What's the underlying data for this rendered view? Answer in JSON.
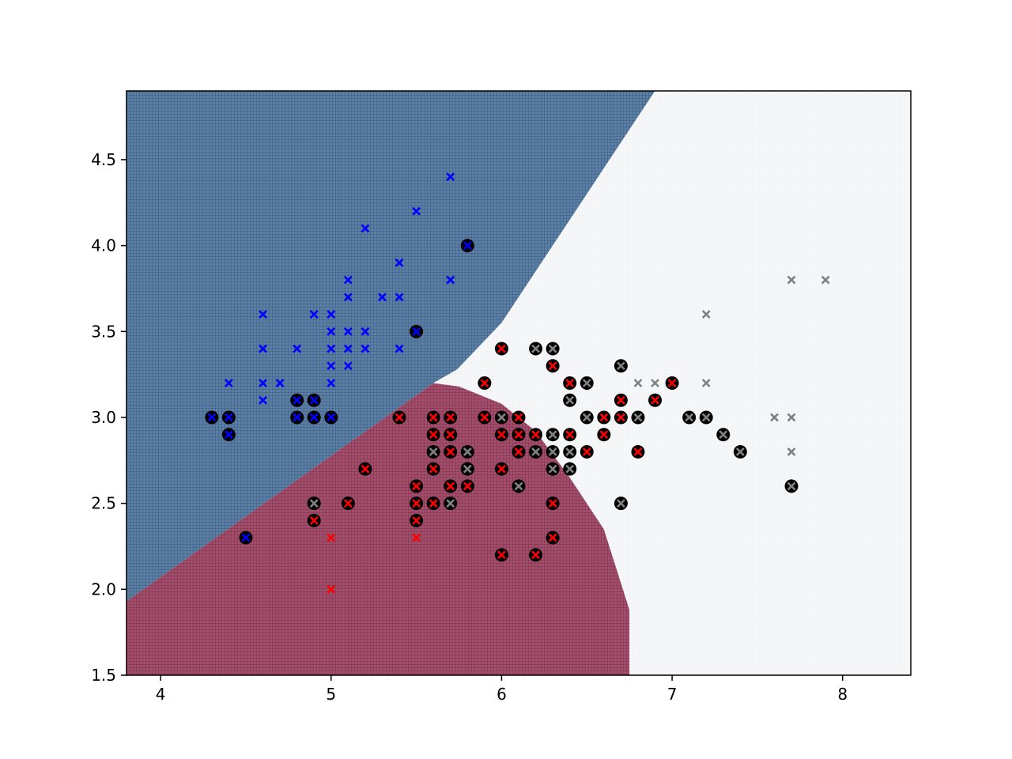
{
  "chart_data": {
    "type": "scatter",
    "title": "",
    "xlabel": "",
    "ylabel": "",
    "xlim": [
      3.8,
      8.4
    ],
    "ylim": [
      1.5,
      4.9
    ],
    "grid": false,
    "x_ticks": [
      4,
      5,
      6,
      7,
      8
    ],
    "x_tick_labels": [
      "4",
      "5",
      "6",
      "7",
      "8"
    ],
    "y_ticks": [
      1.5,
      2.0,
      2.5,
      3.0,
      3.5,
      4.0,
      4.5
    ],
    "y_tick_labels": [
      "1.5",
      "2.0",
      "2.5",
      "3.0",
      "3.5",
      "4.0",
      "4.5"
    ],
    "decision_regions": [
      {
        "color": "#5c7fa6",
        "grid_color": "#2f4f6e",
        "polygon": [
          [
            3.8,
            1.93
          ],
          [
            5.6,
            3.2
          ],
          [
            5.74,
            3.28
          ],
          [
            6.0,
            3.55
          ],
          [
            6.4,
            4.15
          ],
          [
            6.9,
            4.9
          ],
          [
            3.8,
            4.9
          ]
        ]
      },
      {
        "color": "#a44e6c",
        "grid_color": "#6b2a41",
        "polygon": [
          [
            3.8,
            1.5
          ],
          [
            6.75,
            1.5
          ],
          [
            6.75,
            1.88
          ],
          [
            6.6,
            2.35
          ],
          [
            6.4,
            2.65
          ],
          [
            6.2,
            2.92
          ],
          [
            6.0,
            3.08
          ],
          [
            5.75,
            3.18
          ],
          [
            5.6,
            3.2
          ],
          [
            3.8,
            1.93
          ]
        ]
      },
      {
        "color": "#f6f7f8",
        "grid_color": "#eceef0",
        "polygon": [
          [
            6.75,
            1.5
          ],
          [
            8.4,
            1.5
          ],
          [
            8.4,
            4.9
          ],
          [
            6.9,
            4.9
          ],
          [
            6.4,
            4.15
          ],
          [
            6.0,
            3.55
          ],
          [
            5.74,
            3.28
          ],
          [
            5.6,
            3.2
          ],
          [
            5.75,
            3.18
          ],
          [
            6.0,
            3.08
          ],
          [
            6.2,
            2.92
          ],
          [
            6.4,
            2.65
          ],
          [
            6.6,
            2.35
          ],
          [
            6.75,
            1.88
          ]
        ]
      }
    ],
    "series": [
      {
        "color": "#0000ff",
        "marker": "x",
        "points": [
          [
            5.7,
            4.4
          ],
          [
            5.5,
            4.2
          ],
          [
            5.2,
            4.1
          ],
          [
            5.4,
            3.9
          ],
          [
            5.1,
            3.8
          ],
          [
            5.7,
            3.8
          ],
          [
            5.1,
            3.7
          ],
          [
            5.3,
            3.7
          ],
          [
            5.4,
            3.7
          ],
          [
            4.6,
            3.6
          ],
          [
            4.9,
            3.6
          ],
          [
            5.0,
            3.6
          ],
          [
            4.7,
            3.2
          ],
          [
            4.6,
            3.4
          ],
          [
            4.8,
            3.4
          ],
          [
            5.0,
            3.4
          ],
          [
            5.1,
            3.4
          ],
          [
            5.2,
            3.4
          ],
          [
            5.4,
            3.4
          ],
          [
            5.0,
            3.5
          ],
          [
            5.1,
            3.5
          ],
          [
            5.2,
            3.5
          ],
          [
            5.0,
            3.3
          ],
          [
            5.1,
            3.3
          ],
          [
            4.4,
            3.2
          ],
          [
            4.6,
            3.2
          ],
          [
            4.7,
            3.2
          ],
          [
            5.0,
            3.2
          ],
          [
            4.6,
            3.1
          ]
        ],
        "circled_points": [
          [
            5.8,
            4.0
          ],
          [
            5.5,
            3.5
          ],
          [
            4.8,
            3.1
          ],
          [
            4.9,
            3.1
          ],
          [
            4.3,
            3.0
          ],
          [
            4.4,
            3.0
          ],
          [
            4.8,
            3.0
          ],
          [
            4.9,
            3.0
          ],
          [
            5.0,
            3.0
          ],
          [
            4.4,
            2.9
          ],
          [
            4.5,
            2.3
          ]
        ]
      },
      {
        "color": "#ff0000",
        "marker": "x",
        "points": [
          [
            5.0,
            2.3
          ],
          [
            5.5,
            2.3
          ],
          [
            5.0,
            2.0
          ]
        ],
        "circled_points": [
          [
            6.0,
            3.4
          ],
          [
            6.3,
            3.3
          ],
          [
            5.9,
            3.2
          ],
          [
            6.4,
            3.2
          ],
          [
            7.0,
            3.2
          ],
          [
            6.7,
            3.1
          ],
          [
            6.9,
            3.1
          ],
          [
            5.4,
            3.0
          ],
          [
            5.6,
            3.0
          ],
          [
            5.7,
            3.0
          ],
          [
            5.9,
            3.0
          ],
          [
            6.1,
            3.0
          ],
          [
            6.6,
            3.0
          ],
          [
            6.7,
            3.0
          ],
          [
            5.6,
            2.9
          ],
          [
            5.7,
            2.9
          ],
          [
            6.0,
            2.9
          ],
          [
            6.1,
            2.9
          ],
          [
            6.2,
            2.9
          ],
          [
            6.4,
            2.9
          ],
          [
            6.6,
            2.9
          ],
          [
            5.7,
            2.8
          ],
          [
            6.1,
            2.8
          ],
          [
            6.5,
            2.8
          ],
          [
            6.8,
            2.8
          ],
          [
            5.6,
            2.7
          ],
          [
            5.8,
            2.7
          ],
          [
            6.0,
            2.7
          ],
          [
            5.2,
            2.7
          ],
          [
            5.5,
            2.6
          ],
          [
            5.7,
            2.6
          ],
          [
            5.8,
            2.6
          ],
          [
            5.1,
            2.5
          ],
          [
            5.5,
            2.5
          ],
          [
            5.6,
            2.5
          ],
          [
            6.3,
            2.5
          ],
          [
            4.9,
            2.4
          ],
          [
            5.5,
            2.4
          ],
          [
            6.3,
            2.3
          ],
          [
            6.0,
            2.2
          ],
          [
            6.2,
            2.2
          ]
        ]
      },
      {
        "color": "#808080",
        "marker": "x",
        "points": [
          [
            7.7,
            3.8
          ],
          [
            7.9,
            3.8
          ],
          [
            7.2,
            3.6
          ],
          [
            6.8,
            3.2
          ],
          [
            6.9,
            3.2
          ],
          [
            7.2,
            3.2
          ],
          [
            7.6,
            3.0
          ],
          [
            7.7,
            3.0
          ],
          [
            7.7,
            2.8
          ]
        ],
        "circled_points": [
          [
            6.2,
            3.4
          ],
          [
            6.3,
            3.4
          ],
          [
            6.7,
            3.3
          ],
          [
            6.5,
            3.2
          ],
          [
            6.4,
            3.1
          ],
          [
            6.0,
            3.0
          ],
          [
            6.5,
            3.0
          ],
          [
            6.8,
            3.0
          ],
          [
            7.1,
            3.0
          ],
          [
            7.2,
            3.0
          ],
          [
            6.3,
            2.9
          ],
          [
            7.3,
            2.9
          ],
          [
            5.6,
            2.8
          ],
          [
            5.8,
            2.8
          ],
          [
            6.2,
            2.8
          ],
          [
            6.3,
            2.8
          ],
          [
            6.4,
            2.8
          ],
          [
            7.4,
            2.8
          ],
          [
            5.8,
            2.7
          ],
          [
            6.3,
            2.7
          ],
          [
            6.4,
            2.7
          ],
          [
            6.1,
            2.6
          ],
          [
            7.7,
            2.6
          ],
          [
            4.9,
            2.5
          ],
          [
            5.7,
            2.5
          ],
          [
            6.7,
            2.5
          ]
        ]
      }
    ]
  }
}
